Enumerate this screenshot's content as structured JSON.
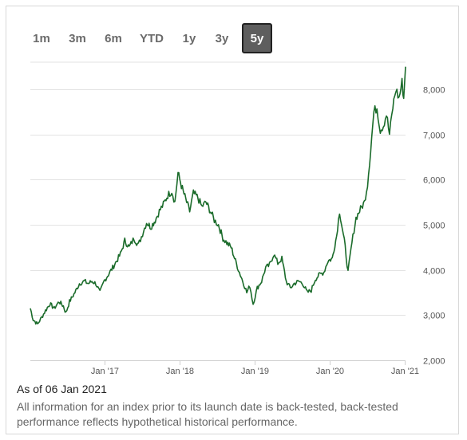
{
  "tabs": [
    {
      "label": "1m",
      "active": false
    },
    {
      "label": "3m",
      "active": false
    },
    {
      "label": "6m",
      "active": false
    },
    {
      "label": "YTD",
      "active": false
    },
    {
      "label": "1y",
      "active": false
    },
    {
      "label": "3y",
      "active": false
    },
    {
      "label": "5y",
      "active": true
    }
  ],
  "footer": {
    "as_of": "As of 06 Jan 2021",
    "disclaimer": "All information for an index prior to its launch date is back-tested, back-tested performance reflects hypothetical historical performance."
  },
  "colors": {
    "line": "#1a6b2a",
    "grid": "#e3e3e3",
    "axis_text": "#555555"
  },
  "chart_data": {
    "type": "line",
    "title": "",
    "xlabel": "",
    "ylabel": "",
    "ylim": [
      2000,
      8600
    ],
    "xlim": [
      "2016-01-06",
      "2021-01-06"
    ],
    "y_ticks": [
      {
        "value": 2000,
        "label": "2,000"
      },
      {
        "value": 3000,
        "label": "3,000"
      },
      {
        "value": 4000,
        "label": "4,000"
      },
      {
        "value": 5000,
        "label": "5,000"
      },
      {
        "value": 6000,
        "label": "6,000"
      },
      {
        "value": 7000,
        "label": "7,000"
      },
      {
        "value": 8000,
        "label": "8,000"
      }
    ],
    "x_ticks": [
      {
        "value": "2017-01-01",
        "label": "Jan '17"
      },
      {
        "value": "2018-01-01",
        "label": "Jan '18"
      },
      {
        "value": "2019-01-01",
        "label": "Jan '19"
      },
      {
        "value": "2020-01-01",
        "label": "Jan '20"
      },
      {
        "value": "2021-01-01",
        "label": "Jan '21"
      }
    ],
    "grid": true,
    "series": [
      {
        "x": [
          "2016-01-06",
          "2016-01-20",
          "2016-02-10",
          "2016-03-01",
          "2016-03-20",
          "2016-04-10",
          "2016-05-01",
          "2016-05-25",
          "2016-06-15",
          "2016-06-27",
          "2016-07-15",
          "2016-08-10",
          "2016-09-01",
          "2016-09-25",
          "2016-10-15",
          "2016-11-01",
          "2016-11-20",
          "2016-12-10",
          "2016-12-30",
          "2017-01-20",
          "2017-02-10",
          "2017-03-01",
          "2017-03-20",
          "2017-04-10",
          "2017-05-01",
          "2017-05-25",
          "2017-06-15",
          "2017-07-05",
          "2017-07-25",
          "2017-08-15",
          "2017-09-05",
          "2017-09-25",
          "2017-10-15",
          "2017-11-05",
          "2017-11-25",
          "2017-12-10",
          "2017-12-25",
          "2018-01-15",
          "2018-02-05",
          "2018-02-20",
          "2018-03-10",
          "2018-04-01",
          "2018-04-20",
          "2018-05-10",
          "2018-06-01",
          "2018-06-20",
          "2018-07-10",
          "2018-08-01",
          "2018-08-20",
          "2018-09-10",
          "2018-10-01",
          "2018-10-20",
          "2018-11-10",
          "2018-11-25",
          "2018-12-10",
          "2018-12-26",
          "2019-01-15",
          "2019-02-05",
          "2019-02-25",
          "2019-03-15",
          "2019-04-05",
          "2019-04-25",
          "2019-05-15",
          "2019-06-05",
          "2019-06-25",
          "2019-07-15",
          "2019-08-05",
          "2019-08-25",
          "2019-09-15",
          "2019-10-05",
          "2019-10-25",
          "2019-11-15",
          "2019-12-05",
          "2019-12-25",
          "2020-01-15",
          "2020-02-05",
          "2020-02-20",
          "2020-03-05",
          "2020-03-18",
          "2020-04-01",
          "2020-04-20",
          "2020-05-10",
          "2020-06-01",
          "2020-06-20",
          "2020-07-05",
          "2020-07-20",
          "2020-08-05",
          "2020-08-20",
          "2020-09-05",
          "2020-09-20",
          "2020-10-05",
          "2020-10-20",
          "2020-11-05",
          "2020-11-20",
          "2020-12-05",
          "2020-12-20",
          "2020-12-28",
          "2021-01-06"
        ],
        "values": [
          3150,
          2900,
          2800,
          2950,
          3100,
          3250,
          3150,
          3300,
          3200,
          3050,
          3300,
          3500,
          3700,
          3750,
          3700,
          3750,
          3700,
          3500,
          3750,
          3900,
          4050,
          4200,
          4350,
          4650,
          4500,
          4700,
          4550,
          4800,
          5050,
          4950,
          5100,
          5300,
          5450,
          5650,
          5750,
          5500,
          6150,
          5800,
          5500,
          5300,
          5700,
          5600,
          5400,
          5500,
          5300,
          5100,
          5000,
          4700,
          4600,
          4500,
          4200,
          3950,
          3700,
          3500,
          3650,
          3250,
          3600,
          3750,
          4050,
          4100,
          4350,
          4150,
          4250,
          3750,
          3600,
          3700,
          3750,
          3700,
          3500,
          3550,
          3800,
          3900,
          3950,
          4200,
          4250,
          4750,
          5300,
          4900,
          4500,
          3950,
          4600,
          5150,
          5350,
          5500,
          5900,
          6650,
          7500,
          7600,
          7100,
          7200,
          7450,
          7000,
          7600,
          8000,
          7800,
          8150,
          7800,
          8500
        ]
      }
    ]
  }
}
